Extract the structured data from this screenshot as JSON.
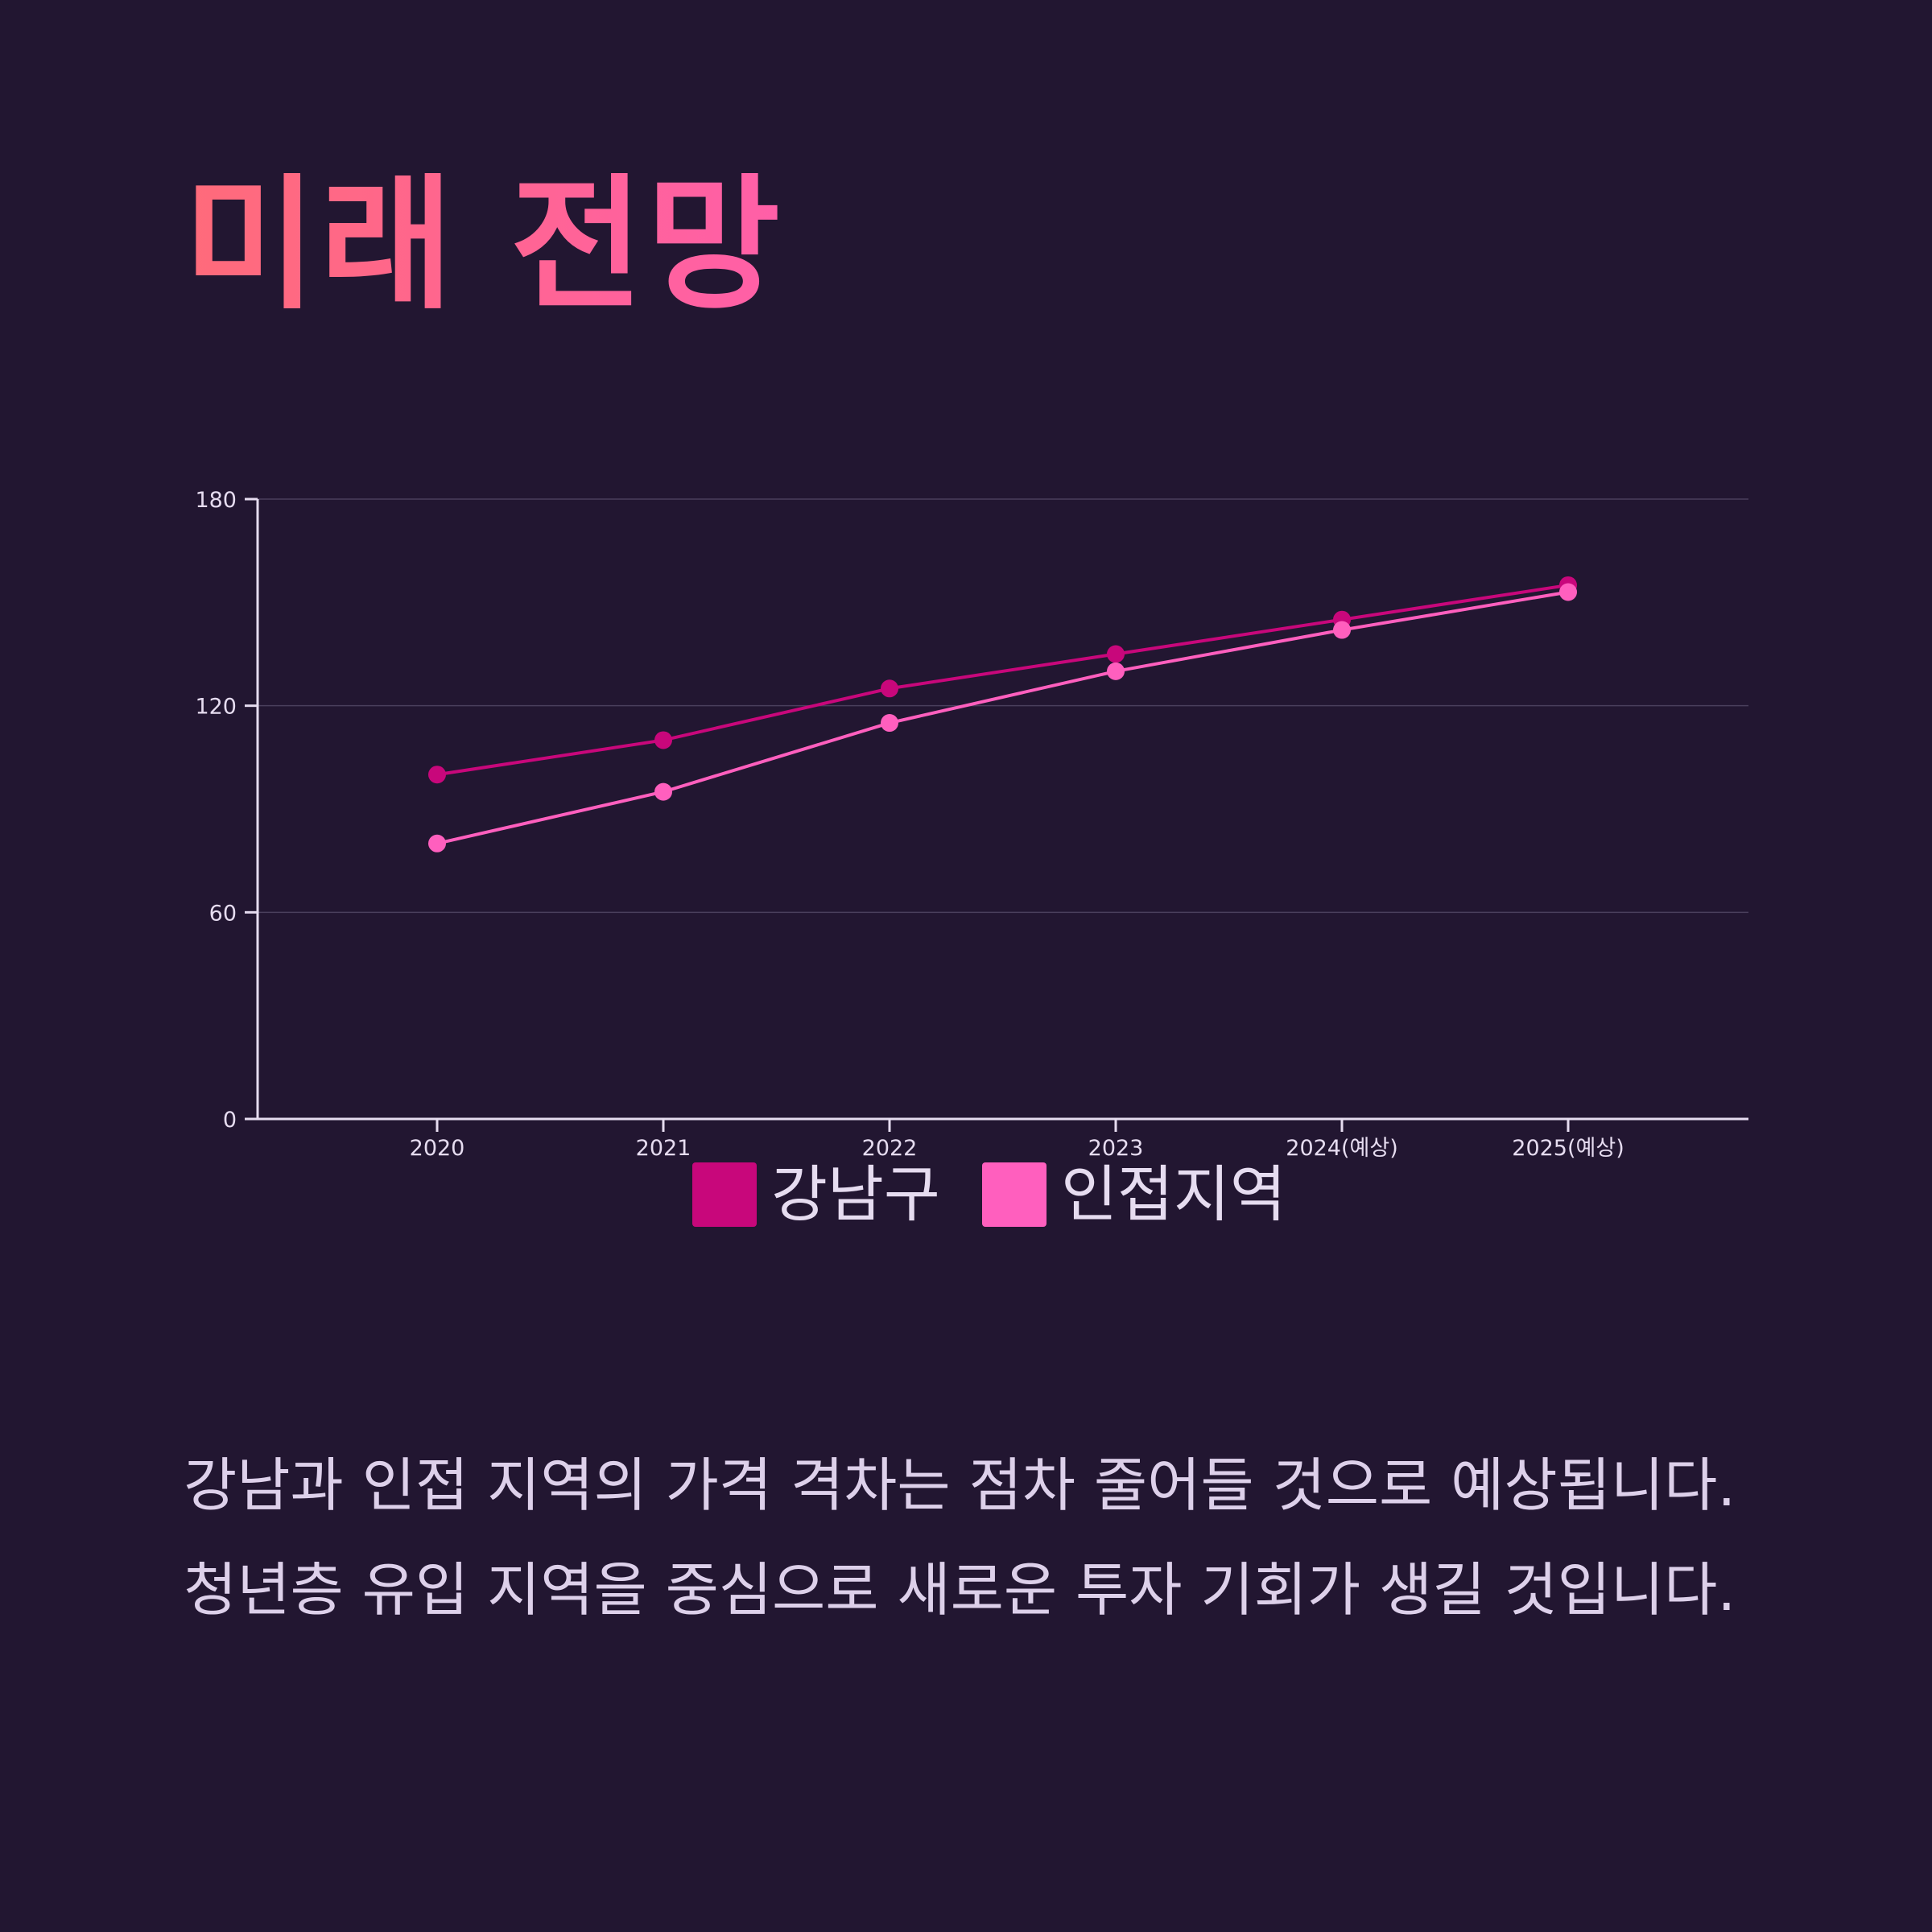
{
  "title": "미래 전망",
  "chart_data": {
    "type": "line",
    "x": [
      "2020",
      "2021",
      "2022",
      "2023",
      "2024(예상)",
      "2025(예상)"
    ],
    "series": [
      {
        "name": "강남구",
        "color": "#c8077b",
        "values": [
          100,
          110,
          125,
          135,
          145,
          155
        ]
      },
      {
        "name": "인접지역",
        "color": "#ff5fbe",
        "values": [
          80,
          95,
          115,
          130,
          142,
          153
        ]
      }
    ],
    "ylim": [
      0,
      180
    ],
    "yticks": [
      0,
      60,
      120,
      180
    ],
    "grid": true,
    "legend": "bottom",
    "xlabel": "",
    "ylabel": ""
  },
  "description": "강남과 인접 지역의 가격 격차는 점차 줄어들 것으로 예상됩니다. 청년층 유입 지역을 중심으로 새로운 투자 기회가 생길 것입니다."
}
